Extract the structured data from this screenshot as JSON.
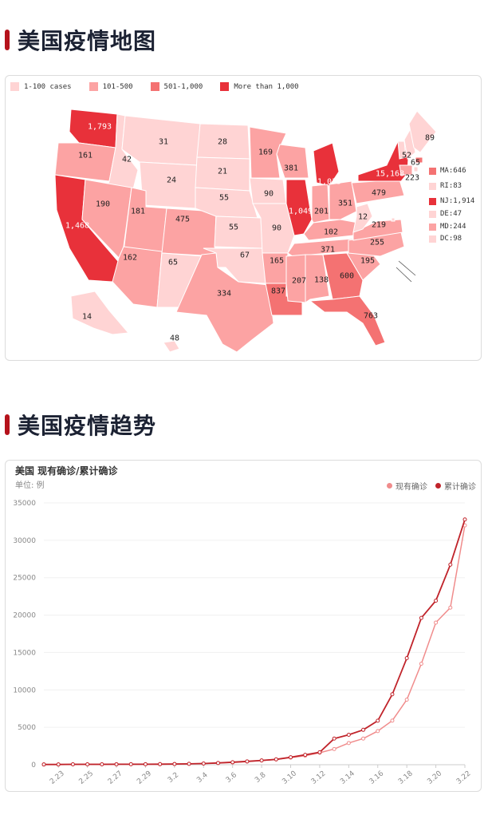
{
  "sections": {
    "map_title": "美国疫情地图",
    "trend_title": "美国疫情趋势"
  },
  "map": {
    "legend": [
      {
        "label": "1-100 cases",
        "color": "#ffd4d4"
      },
      {
        "label": "101-500",
        "color": "#fca3a3"
      },
      {
        "label": "501-1,000",
        "color": "#f47272"
      },
      {
        "label": "More than 1,000",
        "color": "#e8313a"
      }
    ],
    "side_legend": [
      {
        "label": "MA:646",
        "color": "#f47272"
      },
      {
        "label": "RI:83",
        "color": "#ffd4d4"
      },
      {
        "label": "NJ:1,914",
        "color": "#e8313a"
      },
      {
        "label": "DE:47",
        "color": "#ffd4d4"
      },
      {
        "label": "MD:244",
        "color": "#fca3a3"
      },
      {
        "label": "DC:98",
        "color": "#ffd4d4"
      }
    ],
    "states": [
      {
        "id": "WA",
        "label": "1,793",
        "level": 3
      },
      {
        "id": "OR",
        "label": "161",
        "level": 1
      },
      {
        "id": "CA",
        "label": "1,468",
        "level": 3
      },
      {
        "id": "ID",
        "label": "42",
        "level": 0
      },
      {
        "id": "NV",
        "label": "190",
        "level": 1
      },
      {
        "id": "MT",
        "label": "31",
        "level": 0
      },
      {
        "id": "WY",
        "label": "24",
        "level": 0
      },
      {
        "id": "UT",
        "label": "181",
        "level": 1
      },
      {
        "id": "AZ",
        "label": "162",
        "level": 1
      },
      {
        "id": "CO",
        "label": "475",
        "level": 1
      },
      {
        "id": "NM",
        "label": "65",
        "level": 0
      },
      {
        "id": "ND",
        "label": "28",
        "level": 0
      },
      {
        "id": "SD",
        "label": "21",
        "level": 0
      },
      {
        "id": "NE",
        "label": "55",
        "level": 0
      },
      {
        "id": "KS",
        "label": "55",
        "level": 0
      },
      {
        "id": "OK",
        "label": "67",
        "level": 0
      },
      {
        "id": "TX",
        "label": "334",
        "level": 1
      },
      {
        "id": "MN",
        "label": "169",
        "level": 1
      },
      {
        "id": "IA",
        "label": "90",
        "level": 0
      },
      {
        "id": "MO",
        "label": "90",
        "level": 0
      },
      {
        "id": "AR",
        "label": "165",
        "level": 1
      },
      {
        "id": "LA",
        "label": "837",
        "level": 2
      },
      {
        "id": "WI",
        "label": "381",
        "level": 1
      },
      {
        "id": "IL",
        "label": "1,049",
        "level": 3
      },
      {
        "id": "MI",
        "label": "1,035",
        "level": 3
      },
      {
        "id": "IN",
        "label": "201",
        "level": 1
      },
      {
        "id": "OH",
        "label": "351",
        "level": 1
      },
      {
        "id": "KY",
        "label": "102",
        "level": 1
      },
      {
        "id": "TN",
        "label": "371",
        "level": 1
      },
      {
        "id": "MS",
        "label": "207",
        "level": 1
      },
      {
        "id": "AL",
        "label": "138",
        "level": 1
      },
      {
        "id": "GA",
        "label": "600",
        "level": 2
      },
      {
        "id": "FL",
        "label": "763",
        "level": 2
      },
      {
        "id": "SC",
        "label": "195",
        "level": 1
      },
      {
        "id": "NC",
        "label": "255",
        "level": 1
      },
      {
        "id": "VA",
        "label": "219",
        "level": 1
      },
      {
        "id": "WV",
        "label": "12",
        "level": 0
      },
      {
        "id": "PA",
        "label": "479",
        "level": 1
      },
      {
        "id": "NY",
        "label": "15,168",
        "level": 3
      },
      {
        "id": "VT",
        "label": "52",
        "level": 0
      },
      {
        "id": "NH",
        "label": "65",
        "level": 0
      },
      {
        "id": "ME",
        "label": "89",
        "level": 0
      },
      {
        "id": "CT",
        "label": "223",
        "level": 1
      },
      {
        "id": "AK",
        "label": "14",
        "level": 0
      },
      {
        "id": "HI",
        "label": "48",
        "level": 0
      }
    ]
  },
  "chart_data": {
    "type": "line",
    "title": "美国 现有确诊/累计确诊",
    "unit_label": "单位: 例",
    "x": [
      "2.22",
      "2.23",
      "2.24",
      "2.25",
      "2.26",
      "2.27",
      "2.28",
      "2.29",
      "3.1",
      "3.2",
      "3.3",
      "3.4",
      "3.5",
      "3.6",
      "3.7",
      "3.8",
      "3.9",
      "3.10",
      "3.11",
      "3.12",
      "3.13",
      "3.14",
      "3.15",
      "3.16",
      "3.17",
      "3.18",
      "3.19",
      "3.20",
      "3.21",
      "3.22"
    ],
    "xtick_labels": [
      "2.23",
      "2.25",
      "2.27",
      "2.29",
      "3.2",
      "3.4",
      "3.6",
      "3.8",
      "3.10",
      "3.12",
      "3.14",
      "3.16",
      "3.18",
      "3.20",
      "3.22"
    ],
    "yticks": [
      0,
      5000,
      10000,
      15000,
      20000,
      25000,
      30000,
      35000
    ],
    "ylim": [
      0,
      35000
    ],
    "grid": true,
    "legend_position": "top-right",
    "series": [
      {
        "name": "现有确诊",
        "color": "#f08c8c",
        "values": [
          35,
          35,
          53,
          53,
          57,
          60,
          62,
          68,
          75,
          100,
          120,
          160,
          230,
          300,
          420,
          560,
          700,
          950,
          1200,
          1600,
          2100,
          2900,
          3500,
          4500,
          5900,
          8700,
          13500,
          19000,
          21000,
          32000
        ]
      },
      {
        "name": "累计确诊",
        "color": "#c0232a",
        "values": [
          35,
          35,
          53,
          53,
          57,
          60,
          62,
          68,
          75,
          100,
          122,
          159,
          233,
          338,
          445,
          572,
          717,
          1004,
          1323,
          1663,
          3490,
          4000,
          4663,
          5881,
          9415,
          14250,
          19624,
          21924,
          26747,
          32783
        ]
      }
    ]
  }
}
